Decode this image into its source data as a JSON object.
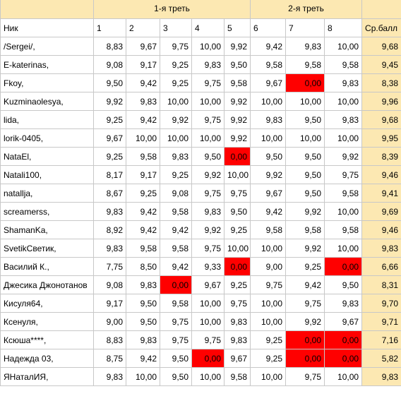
{
  "groups": [
    "1-я треть",
    "2-я треть"
  ],
  "headers": {
    "name": "Ник",
    "cols": [
      "1",
      "2",
      "3",
      "4",
      "5",
      "6",
      "7",
      "8"
    ],
    "avg": "Ср.балл"
  },
  "highlight_colors": {
    "header": "#fce8b2",
    "low_score": "#ff0000"
  },
  "rows": [
    {
      "name": "/Sergei/,",
      "scores": [
        "8,83",
        "9,67",
        "9,75",
        "10,00",
        "9,92",
        "9,42",
        "9,83",
        "10,00"
      ],
      "avg": "9,68"
    },
    {
      "name": "E-katerinas,",
      "scores": [
        "9,08",
        "9,17",
        "9,25",
        "9,83",
        "9,50",
        "9,58",
        "9,58",
        "9,58"
      ],
      "avg": "9,45"
    },
    {
      "name": "Fkoy,",
      "scores": [
        "9,50",
        "9,42",
        "9,25",
        "9,75",
        "9,58",
        "9,67",
        "0,00",
        "9,83"
      ],
      "avg": "8,38"
    },
    {
      "name": "Kuzminaolesya,",
      "scores": [
        "9,92",
        "9,83",
        "10,00",
        "10,00",
        "9,92",
        "10,00",
        "10,00",
        "10,00"
      ],
      "avg": "9,96"
    },
    {
      "name": "lida,",
      "scores": [
        "9,25",
        "9,42",
        "9,92",
        "9,75",
        "9,92",
        "9,83",
        "9,50",
        "9,83"
      ],
      "avg": "9,68"
    },
    {
      "name": "lorik-0405,",
      "scores": [
        "9,67",
        "10,00",
        "10,00",
        "10,00",
        "9,92",
        "10,00",
        "10,00",
        "10,00"
      ],
      "avg": "9,95"
    },
    {
      "name": "NataEl,",
      "scores": [
        "9,25",
        "9,58",
        "9,83",
        "9,50",
        "0,00",
        "9,50",
        "9,50",
        "9,92"
      ],
      "avg": "8,39"
    },
    {
      "name": "Natali100,",
      "scores": [
        "8,17",
        "9,17",
        "9,25",
        "9,92",
        "10,00",
        "9,92",
        "9,50",
        "9,75"
      ],
      "avg": "9,46"
    },
    {
      "name": "natallja,",
      "scores": [
        "8,67",
        "9,25",
        "9,08",
        "9,75",
        "9,75",
        "9,67",
        "9,50",
        "9,58"
      ],
      "avg": "9,41"
    },
    {
      "name": "screamerss,",
      "scores": [
        "9,83",
        "9,42",
        "9,58",
        "9,83",
        "9,50",
        "9,42",
        "9,92",
        "10,00"
      ],
      "avg": "9,69"
    },
    {
      "name": "ShamanKa,",
      "scores": [
        "8,92",
        "9,42",
        "9,42",
        "9,92",
        "9,25",
        "9,58",
        "9,58",
        "9,58"
      ],
      "avg": "9,46"
    },
    {
      "name": "SvetikСветик,",
      "scores": [
        "9,83",
        "9,58",
        "9,58",
        "9,75",
        "10,00",
        "10,00",
        "9,92",
        "10,00"
      ],
      "avg": "9,83"
    },
    {
      "name": "Василий К.,",
      "scores": [
        "7,75",
        "8,50",
        "9,42",
        "9,33",
        "0,00",
        "9,00",
        "9,25",
        "0,00"
      ],
      "avg": "6,66"
    },
    {
      "name": "Джесика Джонотанов",
      "scores": [
        "9,08",
        "9,83",
        "0,00",
        "9,67",
        "9,25",
        "9,75",
        "9,42",
        "9,50"
      ],
      "avg": "8,31"
    },
    {
      "name": "Кисуля64,",
      "scores": [
        "9,17",
        "9,50",
        "9,58",
        "10,00",
        "9,75",
        "10,00",
        "9,75",
        "9,83"
      ],
      "avg": "9,70"
    },
    {
      "name": "Ксенуля,",
      "scores": [
        "9,00",
        "9,50",
        "9,75",
        "10,00",
        "9,83",
        "10,00",
        "9,92",
        "9,67"
      ],
      "avg": "9,71"
    },
    {
      "name": "Ксюша****,",
      "scores": [
        "8,83",
        "9,83",
        "9,75",
        "9,75",
        "9,83",
        "9,25",
        "0,00",
        "0,00"
      ],
      "avg": "7,16"
    },
    {
      "name": "Надежда 03,",
      "scores": [
        "8,75",
        "9,42",
        "9,50",
        "0,00",
        "9,67",
        "9,25",
        "0,00",
        "0,00"
      ],
      "avg": "5,82"
    },
    {
      "name": "ЯНаталИЯ,",
      "scores": [
        "9,83",
        "10,00",
        "9,50",
        "10,00",
        "9,58",
        "10,00",
        "9,75",
        "10,00"
      ],
      "avg": "9,83"
    }
  ]
}
